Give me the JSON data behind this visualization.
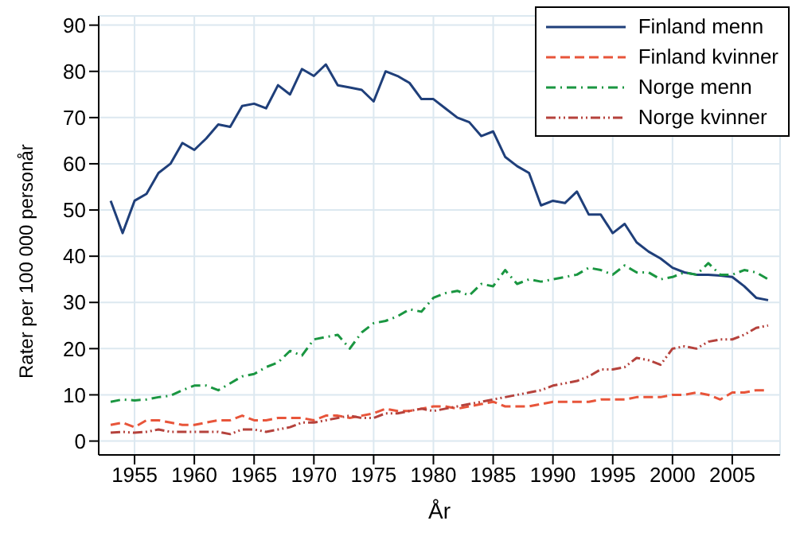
{
  "chart_data": {
    "type": "line",
    "xlabel": "År",
    "ylabel": "Rater per 100 000 personår",
    "x": [
      1953,
      1954,
      1955,
      1956,
      1957,
      1958,
      1959,
      1960,
      1961,
      1962,
      1963,
      1964,
      1965,
      1966,
      1967,
      1968,
      1969,
      1970,
      1971,
      1972,
      1973,
      1974,
      1975,
      1976,
      1977,
      1978,
      1979,
      1980,
      1981,
      1982,
      1983,
      1984,
      1985,
      1986,
      1987,
      1988,
      1989,
      1990,
      1991,
      1992,
      1993,
      1994,
      1995,
      1996,
      1997,
      1998,
      1999,
      2000,
      2001,
      2002,
      2003,
      2004,
      2005,
      2006,
      2007,
      2008
    ],
    "series": [
      {
        "name": "Finland menn",
        "color": "#1f3f7a",
        "line_style": "solid",
        "values": [
          52,
          45,
          52,
          53.5,
          58,
          60,
          64.5,
          63,
          65.5,
          68.5,
          68,
          72.5,
          73,
          72,
          77,
          75,
          80.5,
          79,
          81.5,
          77,
          76.5,
          76,
          73.5,
          80,
          79,
          77.5,
          74,
          74,
          72,
          70,
          69,
          66,
          67,
          61.5,
          59.5,
          58,
          51,
          52,
          51.5,
          54,
          49,
          49,
          45,
          47,
          43,
          41,
          39.5,
          37.5,
          36.5,
          36,
          36,
          35.8,
          35.5,
          33.5,
          31,
          30.5
        ]
      },
      {
        "name": "Finland kvinner",
        "color": "#e8553a",
        "line_style": "dashed",
        "values": [
          3.5,
          4,
          3,
          4.5,
          4.5,
          4,
          3.5,
          3.5,
          4,
          4.5,
          4.5,
          5.5,
          4.5,
          4.5,
          5,
          5,
          5,
          4.5,
          5.5,
          5.5,
          5,
          5.5,
          6,
          7,
          6.5,
          6.5,
          7,
          7.5,
          7.5,
          7,
          7.5,
          8,
          8.5,
          7.5,
          7.5,
          7.5,
          8,
          8.5,
          8.5,
          8.5,
          8.5,
          9,
          9,
          9,
          9.5,
          9.5,
          9.5,
          10,
          10,
          10.5,
          10,
          9,
          10.5,
          10.5,
          11,
          11
        ]
      },
      {
        "name": "Norge menn",
        "color": "#1a9641",
        "line_style": "dashdot",
        "values": [
          8.5,
          9,
          8.8,
          9,
          9.5,
          9.8,
          11,
          12,
          12,
          11,
          12.5,
          14,
          14.5,
          16,
          17,
          19.5,
          18.5,
          22,
          22.5,
          23,
          20,
          23.5,
          25.5,
          26,
          27,
          28.5,
          28,
          31,
          32,
          32.5,
          31.5,
          34,
          33.5,
          37,
          34,
          35,
          34.5,
          35,
          35.5,
          36,
          37.5,
          37,
          36,
          38,
          36.5,
          36.5,
          35,
          35.5,
          36.5,
          36,
          38.5,
          36,
          36,
          37,
          36.5,
          35
        ]
      },
      {
        "name": "Norge kvinner",
        "color": "#b5423c",
        "line_style": "dashdotdot",
        "values": [
          1.8,
          2,
          1.8,
          2,
          2.5,
          2,
          2,
          2,
          2,
          2,
          1.5,
          2.5,
          2.5,
          2,
          2.5,
          3,
          4,
          4,
          4.5,
          5,
          5.5,
          5,
          5,
          6,
          6,
          6.5,
          7,
          6.5,
          7,
          7.5,
          8,
          8.5,
          9,
          9.5,
          10,
          10.5,
          11,
          12,
          12.5,
          13,
          14,
          15.5,
          15.5,
          16,
          18,
          17.5,
          16.5,
          20,
          20.5,
          20,
          21.5,
          22,
          22,
          23,
          24.5,
          25
        ]
      }
    ],
    "xlim": [
      1952,
      2009
    ],
    "xticks": [
      1955,
      1960,
      1965,
      1970,
      1975,
      1980,
      1985,
      1990,
      1995,
      2000,
      2005
    ],
    "ylim": [
      -3,
      92
    ],
    "yticks": [
      0,
      10,
      20,
      30,
      40,
      50,
      60,
      70,
      80,
      90
    ],
    "grid": true,
    "legend": "top right",
    "marker": "none"
  }
}
